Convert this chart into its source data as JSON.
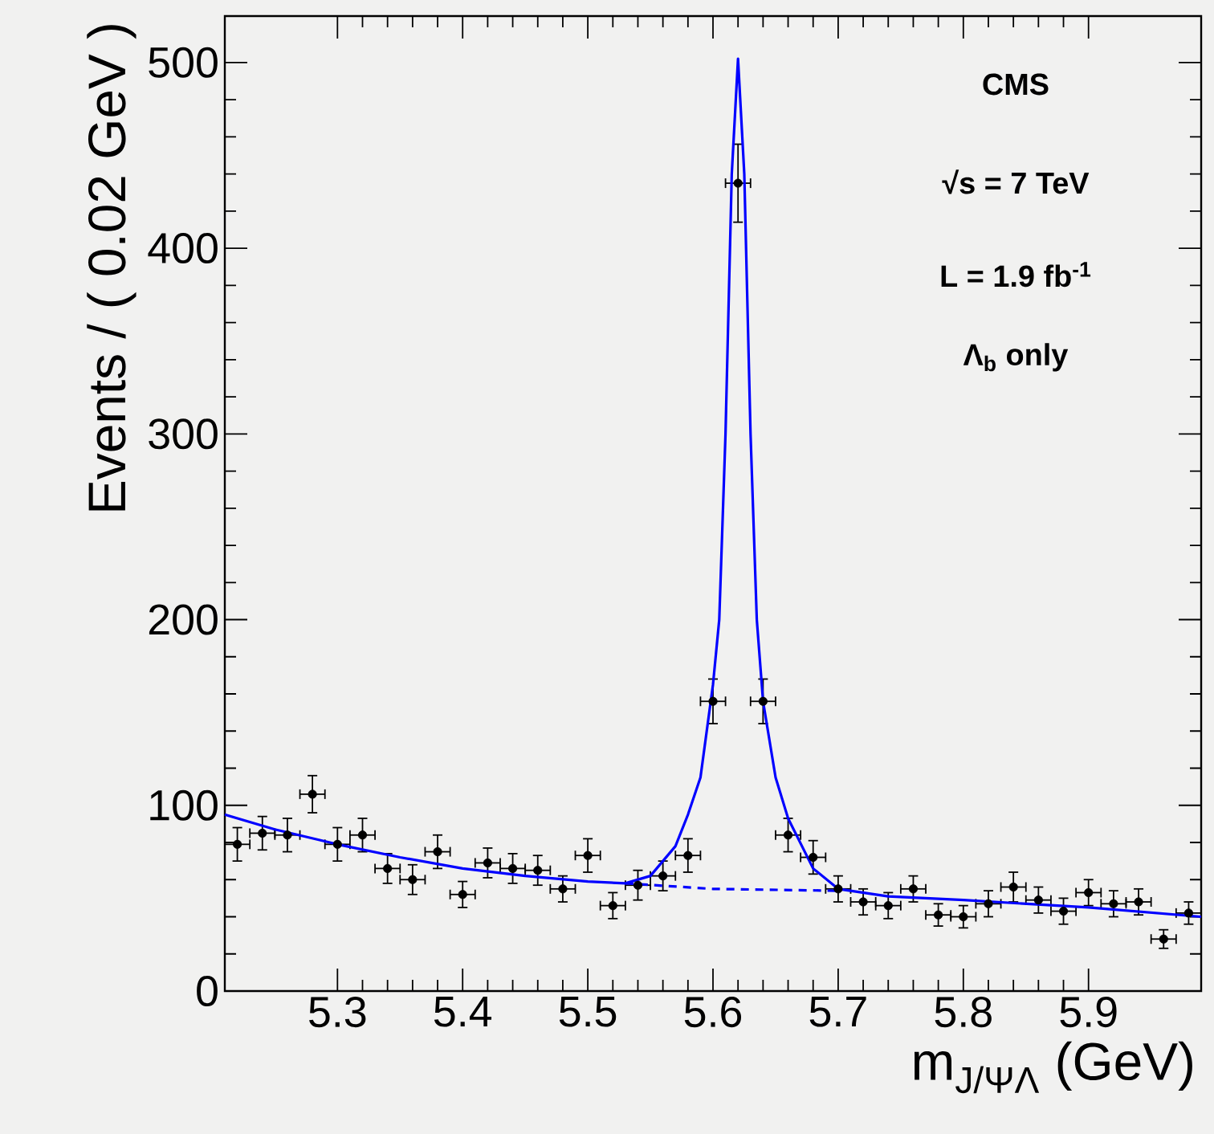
{
  "chart_data": {
    "type": "scatter",
    "xlabel": "m$_{J/ΨΛ}$ (GeV)",
    "ylabel": "Events / ( 0.02 GeV )",
    "xlim": [
      5.21,
      5.99
    ],
    "ylim": [
      0,
      525
    ],
    "xticks": [
      5.3,
      5.4,
      5.5,
      5.6,
      5.7,
      5.8,
      5.9
    ],
    "yticks": [
      0,
      100,
      200,
      300,
      400,
      500
    ],
    "annotations": [
      "**CMS**",
      "**√s = 7 TeV**",
      "**L = 1.9 fb$^{-1}$**",
      "**Λ$_{b}$ only**"
    ],
    "series": [
      {
        "color": "#000000",
        "marker": "circle",
        "x": [
          5.22,
          5.24,
          5.26,
          5.28,
          5.3,
          5.32,
          5.34,
          5.36,
          5.38,
          5.4,
          5.42,
          5.44,
          5.46,
          5.48,
          5.5,
          5.52,
          5.54,
          5.56,
          5.58,
          5.6,
          5.62,
          5.64,
          5.66,
          5.68,
          5.7,
          5.72,
          5.74,
          5.76,
          5.78,
          5.8,
          5.82,
          5.84,
          5.86,
          5.88,
          5.9,
          5.92,
          5.94,
          5.96,
          5.98
        ],
        "values": [
          79,
          85,
          84,
          106,
          79,
          84,
          66,
          60,
          75,
          52,
          69,
          66,
          65,
          55,
          73,
          46,
          57,
          62,
          73,
          156,
          435,
          156,
          84,
          72,
          55,
          48,
          46,
          55,
          41,
          40,
          47,
          56,
          49,
          43,
          53,
          47,
          48,
          28,
          42
        ],
        "errors": [
          9,
          9,
          9,
          10,
          9,
          9,
          8,
          8,
          9,
          7,
          8,
          8,
          8,
          7,
          9,
          7,
          8,
          8,
          9,
          12,
          21,
          12,
          9,
          9,
          7,
          7,
          7,
          7,
          6,
          6,
          7,
          8,
          7,
          7,
          7,
          7,
          7,
          5,
          6
        ],
        "xerrors": [
          0.01,
          0.01,
          0.01,
          0.01,
          0.01,
          0.01,
          0.01,
          0.01,
          0.01,
          0.01,
          0.01,
          0.01,
          0.01,
          0.01,
          0.01,
          0.01,
          0.01,
          0.01,
          0.01,
          0.01,
          0.01,
          0.01,
          0.01,
          0.01,
          0.01,
          0.01,
          0.01,
          0.01,
          0.01,
          0.01,
          0.01,
          0.01,
          0.01,
          0.01,
          0.01,
          0.01,
          0.01,
          0.01,
          0.01
        ]
      },
      {
        "type": "line",
        "color": "#0000ff",
        "line_style": "solid",
        "x": [
          5.21,
          5.25,
          5.3,
          5.35,
          5.4,
          5.45,
          5.5,
          5.53,
          5.55,
          5.57,
          5.58,
          5.59,
          5.6,
          5.605,
          5.61,
          5.615,
          5.62,
          5.625,
          5.63,
          5.635,
          5.64,
          5.65,
          5.66,
          5.68,
          5.7,
          5.74,
          5.8,
          5.9,
          5.99
        ],
        "values": [
          95,
          87,
          79,
          72,
          66,
          62,
          59,
          58,
          62,
          78,
          95,
          115,
          165,
          200,
          300,
          440,
          502,
          440,
          300,
          200,
          156,
          115,
          93,
          66,
          55,
          51,
          49,
          45,
          40
        ]
      },
      {
        "type": "line",
        "color": "#0000ff",
        "line_style": "dashed",
        "x": [
          5.53,
          5.6,
          5.7
        ],
        "values": [
          58,
          55,
          54
        ]
      }
    ]
  }
}
